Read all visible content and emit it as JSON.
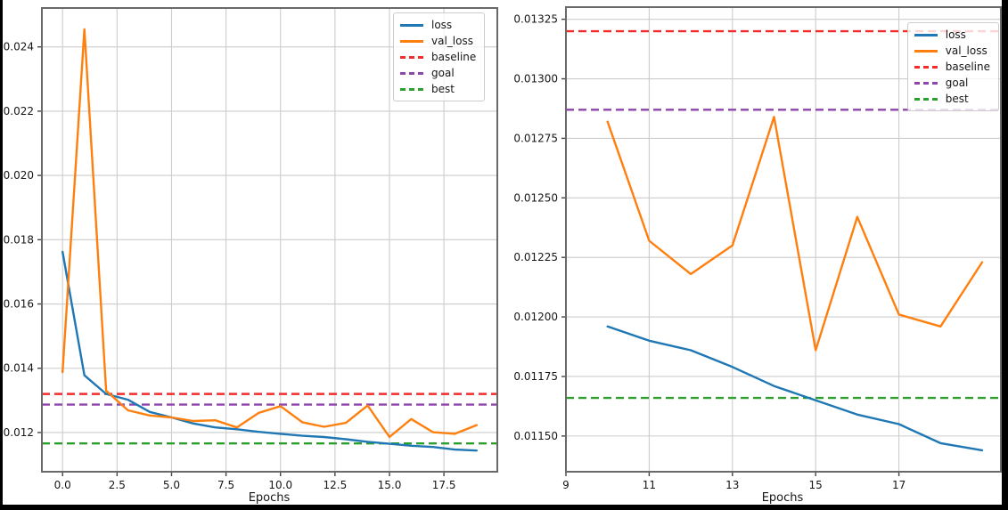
{
  "figure": {
    "background": "#ffffff",
    "frame_color": "#000000",
    "grid_color": "#cccccc",
    "spine_color": "#696969",
    "tick_color": "#444444",
    "text_color": "#161616"
  },
  "chart_data": [
    {
      "type": "line",
      "title": "",
      "xlabel": "Epochs",
      "ylabel": "",
      "grid": true,
      "legend_position": "upper right",
      "legend": [
        "loss",
        "val_loss",
        "baseline",
        "goal",
        "best"
      ],
      "xlim": [
        -0.95,
        19.95
      ],
      "ylim": [
        0.01078,
        0.02521
      ],
      "xticks": {
        "values": [
          0,
          2.5,
          5,
          7.5,
          10,
          12.5,
          15,
          17.5
        ],
        "labels": [
          "0.0",
          "2.5",
          "5.0",
          "7.5",
          "10.0",
          "12.5",
          "15.0",
          "17.5"
        ]
      },
      "yticks": {
        "values": [
          0.012,
          0.014,
          0.016,
          0.018,
          0.02,
          0.022,
          0.024
        ],
        "labels": [
          "0.012",
          "0.014",
          "0.016",
          "0.018",
          "0.020",
          "0.022",
          "0.024"
        ]
      },
      "x": [
        0,
        1,
        2,
        3,
        4,
        5,
        6,
        7,
        8,
        9,
        10,
        11,
        12,
        13,
        14,
        15,
        16,
        17,
        18,
        19
      ],
      "series": [
        {
          "name": "loss",
          "color": "#1f77b4",
          "style": "solid",
          "values": [
            0.01762,
            0.01378,
            0.0132,
            0.01302,
            0.01264,
            0.01247,
            0.01228,
            0.01216,
            0.0121,
            0.01202,
            0.01196,
            0.0119,
            0.01186,
            0.01179,
            0.01171,
            0.01165,
            0.01159,
            0.01155,
            0.01147,
            0.01144
          ]
        },
        {
          "name": "val_loss",
          "color": "#ff7f0e",
          "style": "solid",
          "values": [
            0.01388,
            0.02455,
            0.0133,
            0.01269,
            0.01253,
            0.01247,
            0.01236,
            0.01238,
            0.01216,
            0.01261,
            0.01282,
            0.01232,
            0.01218,
            0.0123,
            0.01284,
            0.01186,
            0.01242,
            0.01201,
            0.01196,
            0.01223
          ]
        }
      ],
      "hlines": [
        {
          "name": "baseline",
          "value": 0.0132,
          "color": "#f22b2b",
          "style": "dashed"
        },
        {
          "name": "goal",
          "value": 0.01287,
          "color": "#8e44ad",
          "style": "dashed"
        },
        {
          "name": "best",
          "value": 0.01166,
          "color": "#2ca02c",
          "style": "dashed"
        }
      ]
    },
    {
      "type": "line",
      "title": "",
      "xlabel": "Epochs",
      "ylabel": "",
      "grid": true,
      "legend_position": "upper right",
      "legend": [
        "loss",
        "val_loss",
        "baseline",
        "goal",
        "best"
      ],
      "xlim": [
        9,
        19.45
      ],
      "ylim": [
        0.01135,
        0.013301
      ],
      "xticks": {
        "values": [
          9,
          11,
          13,
          15,
          17
        ],
        "labels": [
          "9",
          "11",
          "13",
          "15",
          "17"
        ]
      },
      "yticks": {
        "values": [
          0.0115,
          0.01175,
          0.012,
          0.01225,
          0.0125,
          0.01275,
          0.013,
          0.01325
        ],
        "labels": [
          "0.01150",
          "0.01175",
          "0.01200",
          "0.01225",
          "0.01250",
          "0.01275",
          "0.01300",
          "0.01325"
        ]
      },
      "x": [
        10,
        11,
        12,
        13,
        14,
        15,
        16,
        17,
        18,
        19
      ],
      "series": [
        {
          "name": "loss",
          "color": "#1f77b4",
          "style": "solid",
          "values": [
            0.01196,
            0.0119,
            0.01186,
            0.01179,
            0.01171,
            0.01165,
            0.01159,
            0.01155,
            0.01147,
            0.01144
          ]
        },
        {
          "name": "val_loss",
          "color": "#ff7f0e",
          "style": "solid",
          "values": [
            0.01282,
            0.01232,
            0.01218,
            0.0123,
            0.01284,
            0.01186,
            0.01242,
            0.01201,
            0.01196,
            0.01223
          ]
        }
      ],
      "hlines": [
        {
          "name": "baseline",
          "value": 0.0132,
          "color": "#f22b2b",
          "style": "dashed"
        },
        {
          "name": "goal",
          "value": 0.01287,
          "color": "#8e44ad",
          "style": "dashed"
        },
        {
          "name": "best",
          "value": 0.01166,
          "color": "#2ca02c",
          "style": "dashed"
        }
      ]
    }
  ]
}
